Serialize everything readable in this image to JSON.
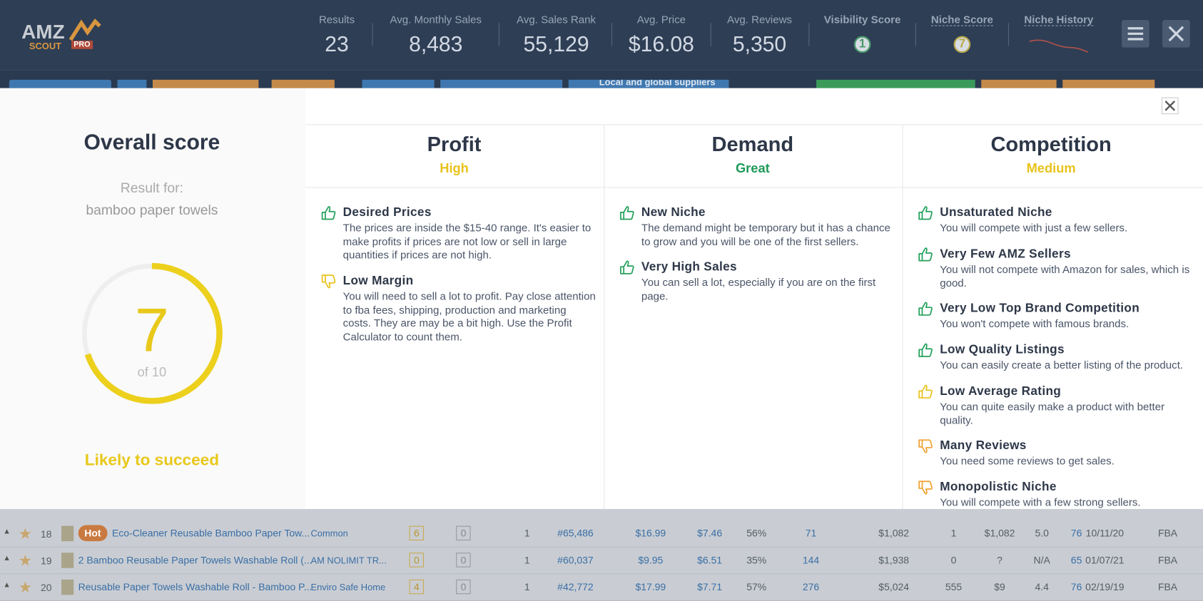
{
  "header": {
    "logo": {
      "main": "AMZ",
      "sub": "SCOUT",
      "badge": "PRO"
    },
    "stats": [
      {
        "label": "Results",
        "value": "23"
      },
      {
        "label": "Avg. Monthly Sales",
        "value": "8,483"
      },
      {
        "label": "Avg. Sales Rank",
        "value": "55,129"
      },
      {
        "label": "Avg. Price",
        "value": "$16.08"
      },
      {
        "label": "Avg. Reviews",
        "value": "5,350"
      },
      {
        "label": "Visibility Score",
        "value": "1",
        "badge_color": "#4a9a6a"
      },
      {
        "label": "Niche Score",
        "value": "7",
        "badge_color": "#b9a94a"
      },
      {
        "label": "Niche History"
      }
    ]
  },
  "toolbar": {
    "suppliers": "Local and global suppliers"
  },
  "overall": {
    "title": "Overall score",
    "result_for": "Result for:",
    "query": "bamboo paper towels",
    "score": 7,
    "score_of": "of 10",
    "verdict": "Likely to succeed"
  },
  "columns": [
    {
      "title": "Profit",
      "rating": "High",
      "rating_color": "#e8c21a",
      "items": [
        {
          "title": "Desired Prices",
          "text": "The prices are inside the $15-40 range. It's easier to make profits if prices are not low or sell in large quantities if prices are not high.",
          "thumb": "up",
          "color": "#23a05a"
        },
        {
          "title": "Low Margin",
          "text": "You will need to sell a lot to profit. Pay close attention to fba fees, shipping, production and marketing costs. They are may be a bit high. Use the Profit Calculator to count them.",
          "thumb": "down",
          "color": "#e8c21a"
        }
      ]
    },
    {
      "title": "Demand",
      "rating": "Great",
      "rating_color": "#1e9a5a",
      "items": [
        {
          "title": "New Niche",
          "text": "The demand might be temporary but it has a chance to grow and you will be one of the first sellers.",
          "thumb": "up",
          "color": "#23a05a"
        },
        {
          "title": "Very High Sales",
          "text": "You can sell a lot, especially if you are on the first page.",
          "thumb": "up",
          "color": "#23a05a"
        }
      ]
    },
    {
      "title": "Competition",
      "rating": "Medium",
      "rating_color": "#e8c21a",
      "items": [
        {
          "title": "Unsaturated Niche",
          "text": "You will compete with just a few sellers.",
          "thumb": "up",
          "color": "#23a05a"
        },
        {
          "title": "Very Few AMZ Sellers",
          "text": "You will not compete with Amazon for sales, which is good.",
          "thumb": "up",
          "color": "#23a05a"
        },
        {
          "title": "Very Low Top Brand Competition",
          "text": "You won't compete with famous brands.",
          "thumb": "up",
          "color": "#23a05a"
        },
        {
          "title": "Low Quality Listings",
          "text": "You can easily create a better listing of the product.",
          "thumb": "up",
          "color": "#23a05a"
        },
        {
          "title": "Low Average Rating",
          "text": "You can quite easily make a product with better quality.",
          "thumb": "up",
          "color": "#e8c21a"
        },
        {
          "title": "Many Reviews",
          "text": "You need some reviews to get sales.",
          "thumb": "down",
          "color": "#f0a030"
        },
        {
          "title": "Monopolistic Niche",
          "text": "You will compete with a few strong sellers.",
          "thumb": "down",
          "color": "#f0a030"
        }
      ]
    }
  ],
  "table": {
    "rows": [
      {
        "n": "18",
        "badge": "Hot",
        "title": "Eco-Cleaner Reusable Bamboo Paper Tow...",
        "brand": "Common",
        "cells": [
          "6",
          "0",
          "1",
          "#65,486",
          "$16.99",
          "$7.46",
          "56%",
          "71",
          "$1,082",
          "1",
          "$1,082",
          "5.0",
          "76",
          "10/11/20",
          "FBA"
        ]
      },
      {
        "n": "19",
        "title": "2 Bamboo Reusable Paper Towels Washable Roll (...",
        "brand": "AM NOLIMIT TR...",
        "cells": [
          "0",
          "0",
          "1",
          "#60,037",
          "$9.95",
          "$6.51",
          "35%",
          "144",
          "$1,938",
          "0",
          "?",
          "N/A",
          "65",
          "01/07/21",
          "FBA"
        ]
      },
      {
        "n": "20",
        "title": "Reusable Paper Towels Washable Roll - Bamboo P...",
        "brand": "Enviro Safe Home",
        "cells": [
          "4",
          "0",
          "1",
          "#42,772",
          "$17.99",
          "$7.71",
          "57%",
          "276",
          "$5,024",
          "555",
          "$9",
          "4.4",
          "76",
          "02/19/19",
          "FBA"
        ]
      }
    ]
  }
}
